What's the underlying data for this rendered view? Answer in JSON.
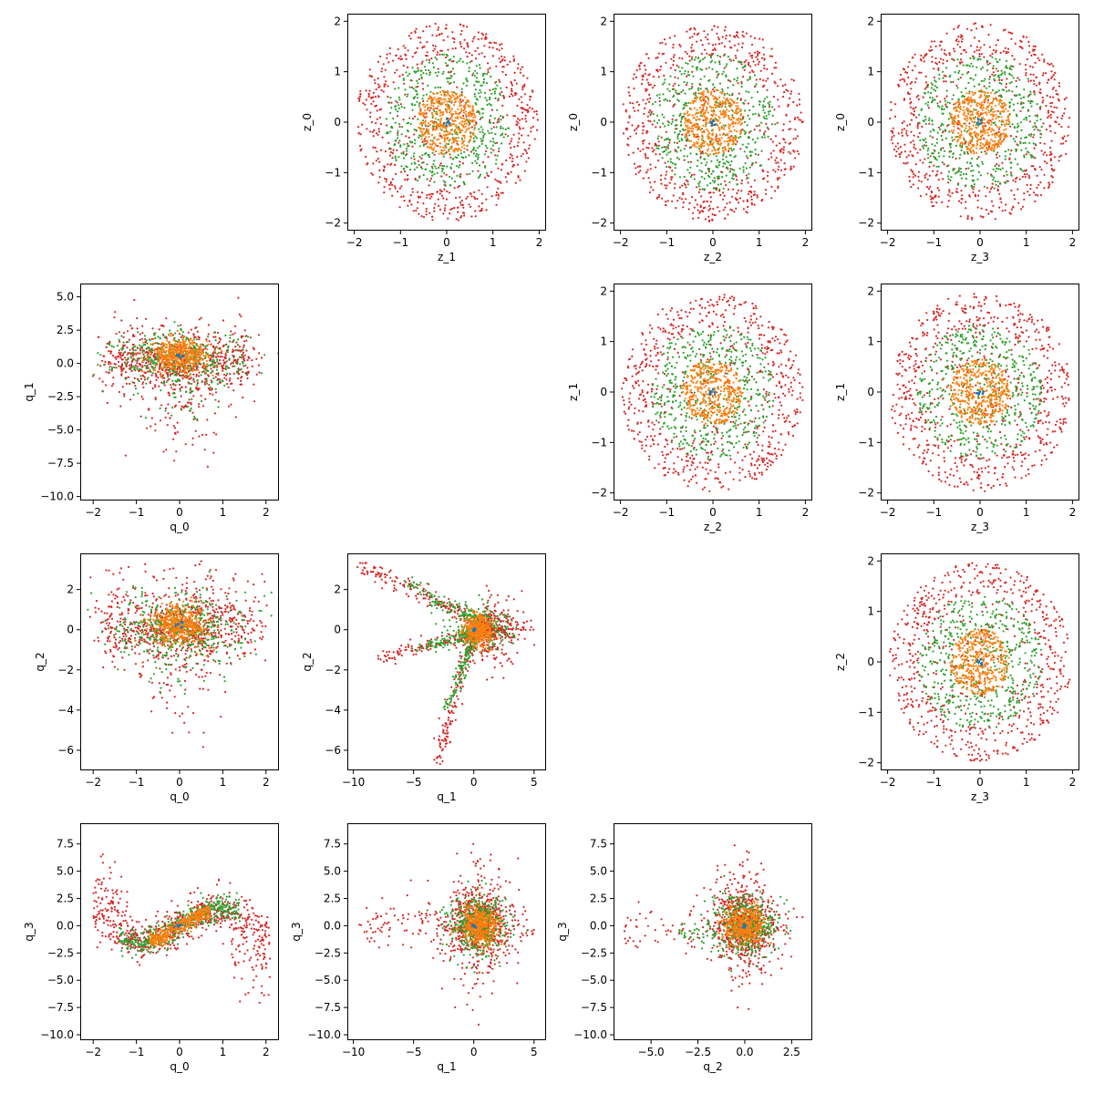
{
  "colors": {
    "outer": "#d62728",
    "middle": "#2ca02c",
    "inner": "#ff7f0e",
    "center": "#1f77b4"
  },
  "chart_data": [
    {
      "type": "scatter",
      "panel": "z_0-vs-z_1",
      "row": 0,
      "col": 1,
      "shape": "ring",
      "xlabel": "z_1",
      "ylabel": "z_0",
      "xlim": [
        -2.15,
        2.15
      ],
      "ylim": [
        -2.15,
        2.15
      ],
      "xticks": [
        -2,
        -1,
        0,
        1,
        2
      ],
      "xtick_labels": [
        "−2",
        "−1",
        "0",
        "1",
        "2"
      ],
      "yticks": [
        -2,
        -1,
        0,
        1,
        2
      ],
      "ytick_labels": [
        "−2",
        "−1",
        "0",
        "1",
        "2"
      ]
    },
    {
      "type": "scatter",
      "panel": "z_0-vs-z_2",
      "row": 0,
      "col": 2,
      "shape": "ring",
      "xlabel": "z_2",
      "ylabel": "z_0",
      "xlim": [
        -2.15,
        2.15
      ],
      "ylim": [
        -2.15,
        2.15
      ],
      "xticks": [
        -2,
        -1,
        0,
        1,
        2
      ],
      "xtick_labels": [
        "−2",
        "−1",
        "0",
        "1",
        "2"
      ],
      "yticks": [
        -2,
        -1,
        0,
        1,
        2
      ],
      "ytick_labels": [
        "−2",
        "−1",
        "0",
        "1",
        "2"
      ]
    },
    {
      "type": "scatter",
      "panel": "z_0-vs-z_3",
      "row": 0,
      "col": 3,
      "shape": "ring",
      "xlabel": "z_3",
      "ylabel": "z_0",
      "xlim": [
        -2.15,
        2.15
      ],
      "ylim": [
        -2.15,
        2.15
      ],
      "xticks": [
        -2,
        -1,
        0,
        1,
        2
      ],
      "xtick_labels": [
        "−2",
        "−1",
        "0",
        "1",
        "2"
      ],
      "yticks": [
        -2,
        -1,
        0,
        1,
        2
      ],
      "ytick_labels": [
        "−2",
        "−1",
        "0",
        "1",
        "2"
      ]
    },
    {
      "type": "scatter",
      "panel": "q_1-vs-q_0",
      "row": 1,
      "col": 0,
      "shape": "q10",
      "xlabel": "q_0",
      "ylabel": "q_1",
      "xlim": [
        -2.3,
        2.3
      ],
      "ylim": [
        -10.3,
        6.0
      ],
      "xticks": [
        -2,
        -1,
        0,
        1,
        2
      ],
      "xtick_labels": [
        "−2",
        "−1",
        "0",
        "1",
        "2"
      ],
      "yticks": [
        -10,
        -7.5,
        -5,
        -2.5,
        0,
        2.5,
        5
      ],
      "ytick_labels": [
        "−10.0",
        "−7.5",
        "−5.0",
        "−2.5",
        "0.0",
        "2.5",
        "5.0"
      ]
    },
    {
      "type": "scatter",
      "panel": "z_1-vs-z_2",
      "row": 1,
      "col": 2,
      "shape": "ring",
      "xlabel": "z_2",
      "ylabel": "z_1",
      "xlim": [
        -2.15,
        2.15
      ],
      "ylim": [
        -2.15,
        2.15
      ],
      "xticks": [
        -2,
        -1,
        0,
        1,
        2
      ],
      "xtick_labels": [
        "−2",
        "−1",
        "0",
        "1",
        "2"
      ],
      "yticks": [
        -2,
        -1,
        0,
        1,
        2
      ],
      "ytick_labels": [
        "−2",
        "−1",
        "0",
        "1",
        "2"
      ]
    },
    {
      "type": "scatter",
      "panel": "z_1-vs-z_3",
      "row": 1,
      "col": 3,
      "shape": "ring",
      "xlabel": "z_3",
      "ylabel": "z_1",
      "xlim": [
        -2.15,
        2.15
      ],
      "ylim": [
        -2.15,
        2.15
      ],
      "xticks": [
        -2,
        -1,
        0,
        1,
        2
      ],
      "xtick_labels": [
        "−2",
        "−1",
        "0",
        "1",
        "2"
      ],
      "yticks": [
        -2,
        -1,
        0,
        1,
        2
      ],
      "ytick_labels": [
        "−2",
        "−1",
        "0",
        "1",
        "2"
      ]
    },
    {
      "type": "scatter",
      "panel": "q_2-vs-q_0",
      "row": 2,
      "col": 0,
      "shape": "q20",
      "xlabel": "q_0",
      "ylabel": "q_2",
      "xlim": [
        -2.3,
        2.3
      ],
      "ylim": [
        -7.0,
        3.8
      ],
      "xticks": [
        -2,
        -1,
        0,
        1,
        2
      ],
      "xtick_labels": [
        "−2",
        "−1",
        "0",
        "1",
        "2"
      ],
      "yticks": [
        -6,
        -4,
        -2,
        0,
        2
      ],
      "ytick_labels": [
        "−6",
        "−4",
        "−2",
        "0",
        "2"
      ]
    },
    {
      "type": "scatter",
      "panel": "q_2-vs-q_1",
      "row": 2,
      "col": 1,
      "shape": "q21",
      "xlabel": "q_1",
      "ylabel": "q_2",
      "xlim": [
        -10.5,
        6.0
      ],
      "ylim": [
        -7.0,
        3.8
      ],
      "xticks": [
        -10,
        -5,
        0,
        5
      ],
      "xtick_labels": [
        "−10",
        "−5",
        "0",
        "5"
      ],
      "yticks": [
        -6,
        -4,
        -2,
        0,
        2
      ],
      "ytick_labels": [
        "−6",
        "−4",
        "−2",
        "0",
        "2"
      ]
    },
    {
      "type": "scatter",
      "panel": "z_2-vs-z_3",
      "row": 2,
      "col": 3,
      "shape": "ring",
      "xlabel": "z_3",
      "ylabel": "z_2",
      "xlim": [
        -2.15,
        2.15
      ],
      "ylim": [
        -2.15,
        2.15
      ],
      "xticks": [
        -2,
        -1,
        0,
        1,
        2
      ],
      "xtick_labels": [
        "−2",
        "−1",
        "0",
        "1",
        "2"
      ],
      "yticks": [
        -2,
        -1,
        0,
        1,
        2
      ],
      "ytick_labels": [
        "−2",
        "−1",
        "0",
        "1",
        "2"
      ]
    },
    {
      "type": "scatter",
      "panel": "q_3-vs-q_0",
      "row": 3,
      "col": 0,
      "shape": "q30",
      "xlabel": "q_0",
      "ylabel": "q_3",
      "xlim": [
        -2.3,
        2.3
      ],
      "ylim": [
        -10.5,
        9.4
      ],
      "xticks": [
        -2,
        -1,
        0,
        1,
        2
      ],
      "xtick_labels": [
        "−2",
        "−1",
        "0",
        "1",
        "2"
      ],
      "yticks": [
        -10,
        -7.5,
        -5,
        -2.5,
        0,
        2.5,
        5,
        7.5
      ],
      "ytick_labels": [
        "−10.0",
        "−7.5",
        "−5.0",
        "−2.5",
        "0.0",
        "2.5",
        "5.0",
        "7.5"
      ]
    },
    {
      "type": "scatter",
      "panel": "q_3-vs-q_1",
      "row": 3,
      "col": 1,
      "shape": "q31",
      "xlabel": "q_1",
      "ylabel": "q_3",
      "xlim": [
        -10.5,
        6.0
      ],
      "ylim": [
        -10.5,
        9.4
      ],
      "xticks": [
        -10,
        -5,
        0,
        5
      ],
      "xtick_labels": [
        "−10",
        "−5",
        "0",
        "5"
      ],
      "yticks": [
        -10,
        -7.5,
        -5,
        -2.5,
        0,
        2.5,
        5,
        7.5
      ],
      "ytick_labels": [
        "−10.0",
        "−7.5",
        "−5.0",
        "−2.5",
        "0.0",
        "2.5",
        "5.0",
        "7.5"
      ]
    },
    {
      "type": "scatter",
      "panel": "q_3-vs-q_2",
      "row": 3,
      "col": 2,
      "shape": "q32",
      "xlabel": "q_2",
      "ylabel": "q_3",
      "xlim": [
        -7.0,
        3.6
      ],
      "ylim": [
        -10.5,
        9.4
      ],
      "xticks": [
        -5,
        -2.5,
        0,
        2.5
      ],
      "xtick_labels": [
        "−5.0",
        "−2.5",
        "0.0",
        "2.5"
      ],
      "yticks": [
        -10,
        -7.5,
        -5,
        -2.5,
        0,
        2.5,
        5,
        7.5
      ],
      "ytick_labels": [
        "−10.0",
        "−7.5",
        "−5.0",
        "−2.5",
        "0.0",
        "2.5",
        "5.0",
        "7.5"
      ]
    }
  ]
}
